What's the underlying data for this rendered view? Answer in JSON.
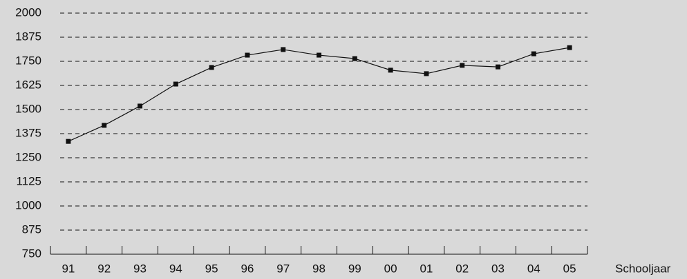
{
  "chart_data": {
    "type": "line",
    "x_label": "Schooljaar",
    "categories": [
      "91",
      "92",
      "93",
      "94",
      "95",
      "96",
      "97",
      "98",
      "99",
      "00",
      "01",
      "02",
      "03",
      "04",
      "05"
    ],
    "values": [
      1335,
      1418,
      1518,
      1632,
      1718,
      1782,
      1811,
      1782,
      1764,
      1704,
      1686,
      1729,
      1721,
      1789,
      1821
    ],
    "color": "#111111",
    "ylim": [
      750,
      2000
    ],
    "yticks": [
      750,
      875,
      1000,
      1125,
      1250,
      1375,
      1500,
      1625,
      1750,
      1875,
      2000
    ],
    "grid": true
  }
}
